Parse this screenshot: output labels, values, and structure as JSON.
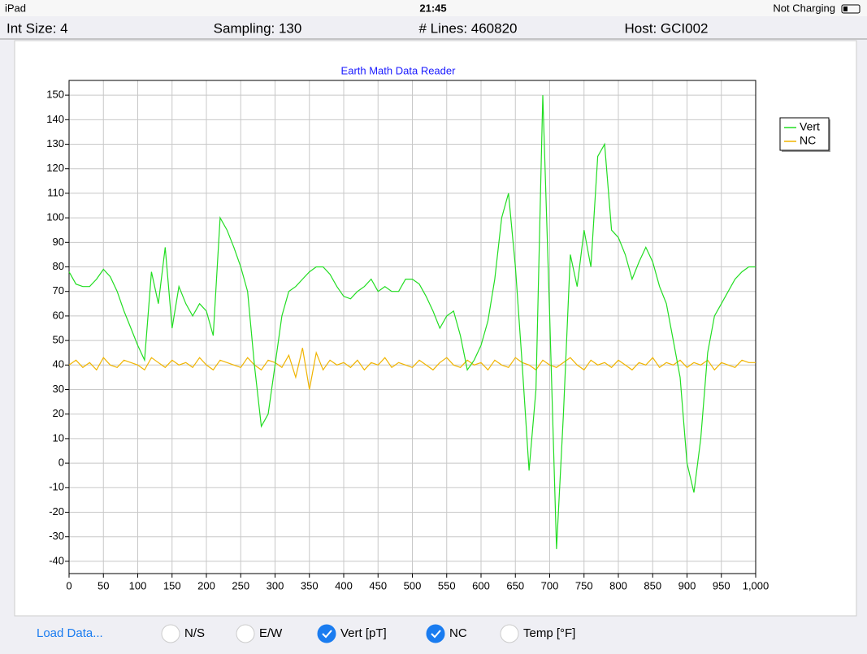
{
  "status_bar": {
    "device": "iPad",
    "time": "21:45",
    "battery": "Not Charging"
  },
  "header": {
    "int_size": "Int Size: 4",
    "sampling": "Sampling: 130",
    "lines": "# Lines: 460820",
    "host": "Host: GCI002"
  },
  "chart_data": {
    "type": "line",
    "title": "Earth Math Data Reader",
    "x": [
      0,
      10,
      20,
      30,
      40,
      50,
      60,
      70,
      80,
      90,
      100,
      110,
      120,
      130,
      140,
      150,
      160,
      170,
      180,
      190,
      200,
      210,
      220,
      230,
      240,
      250,
      260,
      270,
      280,
      290,
      300,
      310,
      320,
      330,
      340,
      350,
      360,
      370,
      380,
      390,
      400,
      410,
      420,
      430,
      440,
      450,
      460,
      470,
      480,
      490,
      500,
      510,
      520,
      530,
      540,
      550,
      560,
      570,
      580,
      590,
      600,
      610,
      620,
      630,
      640,
      650,
      660,
      670,
      680,
      690,
      700,
      710,
      720,
      730,
      740,
      750,
      760,
      770,
      780,
      790,
      800,
      810,
      820,
      830,
      840,
      850,
      860,
      870,
      880,
      890,
      900,
      910,
      920,
      930,
      940,
      950,
      960,
      970,
      980,
      990,
      1000
    ],
    "series": [
      {
        "name": "Vert",
        "color": "#22dd22",
        "values": [
          78,
          73,
          72,
          72,
          75,
          79,
          76,
          70,
          62,
          55,
          48,
          42,
          78,
          65,
          88,
          55,
          72,
          65,
          60,
          65,
          62,
          52,
          100,
          95,
          88,
          80,
          70,
          40,
          15,
          20,
          40,
          60,
          70,
          72,
          75,
          78,
          80,
          80,
          77,
          72,
          68,
          67,
          70,
          72,
          75,
          70,
          72,
          70,
          70,
          75,
          75,
          73,
          68,
          62,
          55,
          60,
          62,
          52,
          38,
          42,
          48,
          58,
          75,
          100,
          110,
          80,
          40,
          -3,
          30,
          150,
          60,
          -35,
          20,
          85,
          72,
          95,
          80,
          125,
          130,
          95,
          92,
          85,
          75,
          82,
          88,
          82,
          72,
          65,
          50,
          35,
          0,
          -12,
          10,
          45,
          60,
          65,
          70,
          75,
          78,
          80,
          80
        ]
      },
      {
        "name": "NC",
        "color": "#f0b400",
        "values": [
          40,
          42,
          39,
          41,
          38,
          43,
          40,
          39,
          42,
          41,
          40,
          38,
          43,
          41,
          39,
          42,
          40,
          41,
          39,
          43,
          40,
          38,
          42,
          41,
          40,
          39,
          43,
          40,
          38,
          42,
          41,
          39,
          44,
          35,
          47,
          30,
          45,
          38,
          42,
          40,
          41,
          39,
          42,
          38,
          41,
          40,
          43,
          39,
          41,
          40,
          39,
          42,
          40,
          38,
          41,
          43,
          40,
          39,
          42,
          40,
          41,
          38,
          42,
          40,
          39,
          43,
          41,
          40,
          38,
          42,
          40,
          39,
          41,
          43,
          40,
          38,
          42,
          40,
          41,
          39,
          42,
          40,
          38,
          41,
          40,
          43,
          39,
          41,
          40,
          42,
          39,
          41,
          40,
          42,
          38,
          41,
          40,
          39,
          42,
          41,
          41
        ]
      }
    ],
    "xlim": [
      0,
      1000
    ],
    "xticks": [
      0,
      50,
      100,
      150,
      200,
      250,
      300,
      350,
      400,
      450,
      500,
      550,
      600,
      650,
      700,
      750,
      800,
      850,
      900,
      950,
      {
        "value": 1000,
        "label": "1,000"
      }
    ],
    "ylim": [
      -45,
      156
    ],
    "yticks": [
      -40,
      -30,
      -20,
      -10,
      0,
      10,
      20,
      30,
      40,
      50,
      60,
      70,
      80,
      90,
      100,
      110,
      120,
      130,
      140,
      150
    ],
    "grid": true,
    "legend": "right"
  },
  "controls": {
    "load": "Load Data...",
    "options": [
      {
        "label": "N/S",
        "checked": false
      },
      {
        "label": "E/W",
        "checked": false
      },
      {
        "label": "Vert [pT]",
        "checked": true
      },
      {
        "label": "NC",
        "checked": true
      },
      {
        "label": "Temp [°F]",
        "checked": false
      }
    ]
  }
}
